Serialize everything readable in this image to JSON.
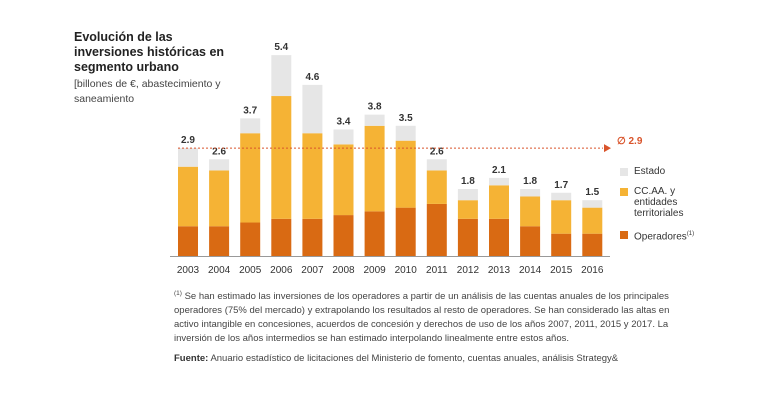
{
  "title": "Evolución de las inversiones históricas en segmento urbano",
  "subtitle": "[billones de €, abastecimiento y saneamiento",
  "avg_label": "∅ 2.9",
  "legend": [
    {
      "label": "Estado",
      "color": "#e6e6e6"
    },
    {
      "label": "CC.AA. y entidades territoriales",
      "color": "#f5b335"
    },
    {
      "label": "Operadores",
      "sup": "(1)",
      "color": "#d96a13"
    }
  ],
  "footnote": {
    "marker": "(1)",
    "text": "Se han estimado las inversiones de los operadores a partir de un análisis de las cuentas anuales de los principales operadores (75% del mercado) y extrapolando los resultados al resto de operadores. Se han considerado las altas en activo intangible en concesiones, acuerdos de concesión y derechos de uso de los años 2007, 2011, 2015 y 2017. La inversión de los años intermedios se han estimado interpolando linealmente entre estos años."
  },
  "source": {
    "label": "Fuente:",
    "text": "Anuario estadístico de licitaciones del Ministerio de fomento, cuentas anuales, análisis Strategy&"
  },
  "colors": {
    "estado": "#e6e6e6",
    "ccaa": "#f5b335",
    "operadores": "#d96a13",
    "avg_line": "#d9542b"
  },
  "chart_data": {
    "type": "bar",
    "stacked": true,
    "title": "Evolución de las inversiones históricas en segmento urbano",
    "ylabel": "billones de €, abastecimiento y saneamiento",
    "categories": [
      "2003",
      "2004",
      "2005",
      "2006",
      "2007",
      "2008",
      "2009",
      "2010",
      "2011",
      "2012",
      "2013",
      "2014",
      "2015",
      "2016"
    ],
    "totals": [
      2.9,
      2.6,
      3.7,
      5.4,
      4.6,
      3.4,
      3.8,
      3.5,
      2.6,
      1.8,
      2.1,
      1.8,
      1.7,
      1.5
    ],
    "total_labels": [
      "2.9",
      "2.6",
      "3.7",
      "5.4",
      "4.6",
      "3.4",
      "3.8",
      "3.5",
      "2.6",
      "1.8",
      "2.1",
      "1.8",
      "1.7",
      "1.5"
    ],
    "series": [
      {
        "name": "Operadores",
        "values": [
          0.8,
          0.8,
          0.9,
          1.0,
          1.0,
          1.1,
          1.2,
          1.3,
          1.4,
          1.0,
          1.0,
          0.8,
          0.6,
          0.6
        ]
      },
      {
        "name": "CC.AA. y entidades territoriales",
        "values": [
          1.6,
          1.5,
          2.4,
          3.3,
          2.3,
          1.9,
          2.3,
          1.8,
          0.9,
          0.5,
          0.9,
          0.8,
          0.9,
          0.7
        ]
      },
      {
        "name": "Estado",
        "values": [
          0.5,
          0.3,
          0.4,
          1.1,
          1.3,
          0.4,
          0.3,
          0.4,
          0.3,
          0.3,
          0.2,
          0.2,
          0.2,
          0.2
        ]
      }
    ],
    "average": 2.9,
    "ylim": [
      0,
      5.6
    ]
  }
}
